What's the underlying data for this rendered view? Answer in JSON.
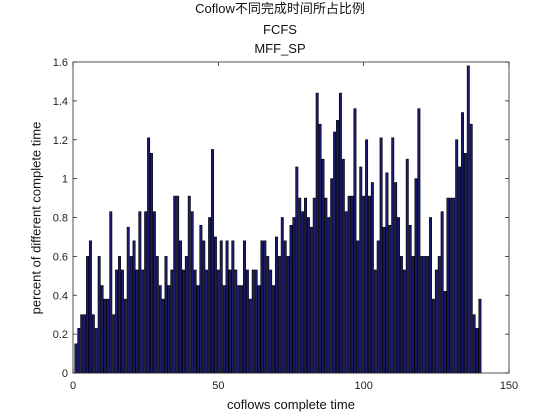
{
  "chart_data": {
    "type": "bar",
    "title_lines": [
      "Coflow不同完成时间所占比例",
      "FCFS",
      "MFF_SP"
    ],
    "xlabel": "coflows complete time",
    "ylabel": "percent of different complete time",
    "xlim": [
      0,
      150
    ],
    "ylim": [
      0,
      1.6
    ],
    "xticks": [
      0,
      50,
      100,
      150
    ],
    "yticks": [
      0,
      0.2,
      0.4,
      0.6,
      0.8,
      1,
      1.2,
      1.4,
      1.6
    ],
    "xtick_labels": [
      "0",
      "50",
      "100",
      "150"
    ],
    "ytick_labels": [
      "0",
      "0.2",
      "0.4",
      "0.6",
      "0.8",
      "1",
      "1.2",
      "1.4",
      "1.6"
    ],
    "grid": false,
    "bar_color": "#1c1c6e",
    "bar_edge_color": "#000000",
    "x": [
      1,
      2,
      3,
      4,
      5,
      6,
      7,
      8,
      9,
      10,
      11,
      12,
      13,
      14,
      15,
      16,
      17,
      18,
      19,
      20,
      21,
      22,
      23,
      24,
      25,
      26,
      27,
      28,
      29,
      30,
      31,
      32,
      33,
      34,
      35,
      36,
      37,
      38,
      39,
      40,
      41,
      42,
      43,
      44,
      45,
      46,
      47,
      48,
      49,
      50,
      51,
      52,
      53,
      54,
      55,
      56,
      57,
      58,
      59,
      60,
      61,
      62,
      63,
      64,
      65,
      66,
      67,
      68,
      69,
      70,
      71,
      72,
      73,
      74,
      75,
      76,
      77,
      78,
      79,
      80,
      81,
      82,
      83,
      84,
      85,
      86,
      87,
      88,
      89,
      90,
      91,
      92,
      93,
      94,
      95,
      96,
      97,
      98,
      99,
      100,
      101,
      102,
      103,
      104,
      105,
      106,
      107,
      108,
      109,
      110,
      111,
      112,
      113,
      114,
      115,
      116,
      117,
      118,
      119,
      120,
      121,
      122,
      123,
      124,
      125,
      126,
      127,
      128,
      129,
      130,
      131,
      132,
      133,
      134,
      135,
      136,
      137,
      138,
      139,
      140
    ],
    "values": [
      0.15,
      0.23,
      0.3,
      0.3,
      0.6,
      0.68,
      0.3,
      0.23,
      0.6,
      0.45,
      0.38,
      0.38,
      0.83,
      0.3,
      0.53,
      0.6,
      0.53,
      0.38,
      0.75,
      0.6,
      0.68,
      0.53,
      0.83,
      0.53,
      0.83,
      1.21,
      1.13,
      0.83,
      0.6,
      0.45,
      0.38,
      0.6,
      0.45,
      0.53,
      0.91,
      0.91,
      0.68,
      0.53,
      0.6,
      0.91,
      0.83,
      0.53,
      0.45,
      0.76,
      0.68,
      0.53,
      0.8,
      1.15,
      0.7,
      0.53,
      0.68,
      0.45,
      0.68,
      0.53,
      0.68,
      0.53,
      0.45,
      0.45,
      0.68,
      0.53,
      0.38,
      0.53,
      0.53,
      0.45,
      0.68,
      0.68,
      0.6,
      0.53,
      0.45,
      0.7,
      0.6,
      0.8,
      0.68,
      0.6,
      0.76,
      0.8,
      1.06,
      0.9,
      0.83,
      0.9,
      0.8,
      0.75,
      0.9,
      1.44,
      1.28,
      1.1,
      0.9,
      0.8,
      1.0,
      1.24,
      1.3,
      1.44,
      1.1,
      0.83,
      0.91,
      0.91,
      1.36,
      0.68,
      1.06,
      0.91,
      1.2,
      0.91,
      0.98,
      0.53,
      0.68,
      1.21,
      0.75,
      1.03,
      0.76,
      1.21,
      0.98,
      0.8,
      0.6,
      0.53,
      1.1,
      0.76,
      0.6,
      1.0,
      1.36,
      0.6,
      0.6,
      0.6,
      0.8,
      0.38,
      0.53,
      0.6,
      0.83,
      0.42,
      0.9,
      0.9,
      0.9,
      1.2,
      1.06,
      1.34,
      1.13,
      1.58,
      1.28,
      0.3,
      0.23,
      0.38
    ]
  }
}
